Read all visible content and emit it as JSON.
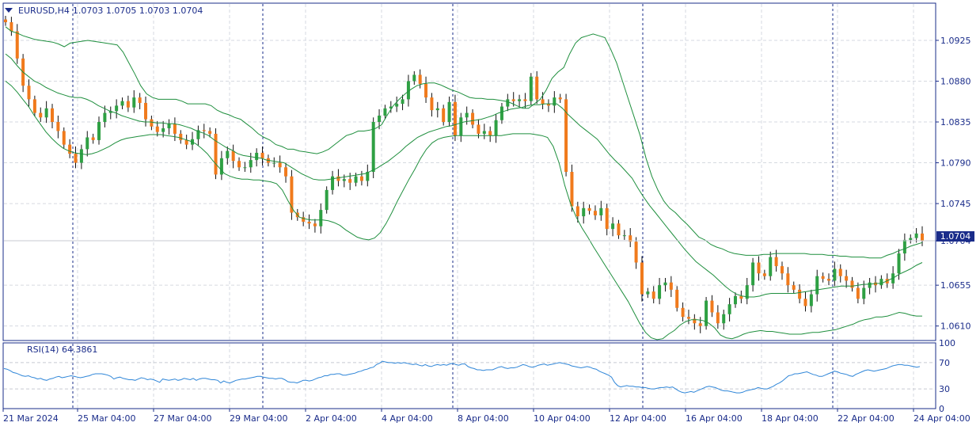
{
  "header": {
    "symbol": "EURUSD,H4",
    "ohlc": "1.0703 1.0705 1.0703 1.0704"
  },
  "rsi": {
    "label": "RSI(14) 64.3861",
    "levels": [
      "100",
      "70",
      "30",
      "0"
    ]
  },
  "price_tag": "1.0704",
  "colors": {
    "bull": "#2ea043",
    "bear": "#f07a1c",
    "band": "#1f8f3e",
    "rsi_line": "#2f86d8",
    "axis_text": "#1a2c8a",
    "grid": "#d6d9e0",
    "separator": "#1a2c8a",
    "price_tag_bg": "#1a2c8a"
  },
  "chart_data": {
    "type": "candlestick",
    "symbol": "EURUSD",
    "timeframe": "H4",
    "y_ticks": [
      "1.0925",
      "1.0880",
      "1.0835",
      "1.0790",
      "1.0745",
      "1.0704",
      "1.0655",
      "1.0610"
    ],
    "ylim": [
      1.0594,
      1.0966
    ],
    "x_labels": [
      "21 Mar 2024",
      "25 Mar 04:00",
      "27 Mar 04:00",
      "29 Mar 04:00",
      "2 Apr 04:00",
      "4 Apr 04:00",
      "8 Apr 04:00",
      "10 Apr 04:00",
      "12 Apr 04:00",
      "16 Apr 04:00",
      "18 Apr 04:00",
      "22 Apr 04:00",
      "24 Apr 04:00"
    ],
    "last_price": 1.0704,
    "closes": [
      1.0945,
      1.0935,
      1.0905,
      1.0875,
      1.086,
      1.0845,
      1.084,
      1.085,
      1.0835,
      1.0825,
      1.081,
      1.08,
      1.079,
      1.0805,
      1.0818,
      1.0815,
      1.0835,
      1.0845,
      1.0847,
      1.0853,
      1.0858,
      1.0851,
      1.0862,
      1.0856,
      1.0838,
      1.083,
      1.0824,
      1.0828,
      1.0833,
      1.0822,
      1.0815,
      1.081,
      1.0816,
      1.0826,
      1.0825,
      1.0822,
      1.0777,
      1.0795,
      1.0803,
      1.0792,
      1.0785,
      1.0785,
      1.0793,
      1.0801,
      1.0795,
      1.079,
      1.079,
      1.0785,
      1.0775,
      1.0735,
      1.073,
      1.0725,
      1.0723,
      1.072,
      1.0738,
      1.076,
      1.0775,
      1.077,
      1.0772,
      1.0768,
      1.0775,
      1.077,
      1.078,
      1.0835,
      1.0842,
      1.085,
      1.0852,
      1.0855,
      1.086,
      1.088,
      1.0887,
      1.0877,
      1.0862,
      1.0848,
      1.085,
      1.0835,
      1.0857,
      1.082,
      1.084,
      1.0845,
      1.0832,
      1.0822,
      1.0825,
      1.082,
      1.0837,
      1.0852,
      1.086,
      1.0858,
      1.086,
      1.0858,
      1.0885,
      1.086,
      1.0855,
      1.0853,
      1.0862,
      1.086,
      1.078,
      1.0742,
      1.0731,
      1.074,
      1.0737,
      1.0732,
      1.074,
      1.0717,
      1.0723,
      1.071,
      1.071,
      1.0703,
      1.068,
      1.0645,
      1.0648,
      1.064,
      1.0655,
      1.0658,
      1.065,
      1.063,
      1.062,
      1.0618,
      1.0613,
      1.061,
      1.0638,
      1.0625,
      1.0613,
      1.0623,
      1.0634,
      1.0643,
      1.064,
      1.0655,
      1.068,
      1.0668,
      1.0665,
      1.0686,
      1.0676,
      1.0668,
      1.0655,
      1.065,
      1.064,
      1.0632,
      1.0645,
      1.0665,
      1.0662,
      1.066,
      1.0673,
      1.0665,
      1.066,
      1.0652,
      1.064,
      1.0652,
      1.0658,
      1.0655,
      1.0662,
      1.0657,
      1.0668,
      1.069,
      1.0705,
      1.0707,
      1.0712,
      1.0704
    ],
    "band_upper": [
      1.094,
      1.0935,
      1.0933,
      1.093,
      1.0928,
      1.0926,
      1.0925,
      1.0924,
      1.0923,
      1.0921,
      1.0918,
      1.0922,
      1.0923,
      1.0924,
      1.0925,
      1.0924,
      1.0923,
      1.0922,
      1.0921,
      1.092,
      1.0912,
      1.09,
      1.0888,
      1.0875,
      1.0866,
      1.0862,
      1.086,
      1.086,
      1.086,
      1.086,
      1.0858,
      1.0855,
      1.0855,
      1.0855,
      1.0855,
      1.0853,
      1.0848,
      1.0845,
      1.0843,
      1.084,
      1.0838,
      1.0833,
      1.0828,
      1.0822,
      1.0818,
      1.0815,
      1.081,
      1.0808,
      1.0805,
      1.0805,
      1.0803,
      1.0802,
      1.0801,
      1.08,
      1.0802,
      1.0805,
      1.081,
      1.0815,
      1.082,
      1.0822,
      1.0825,
      1.0825,
      1.0826,
      1.0828,
      1.0832,
      1.0843,
      1.0853,
      1.086,
      1.0866,
      1.0871,
      1.0875,
      1.0877,
      1.0878,
      1.0878,
      1.0876,
      1.0873,
      1.087,
      1.0868,
      1.0865,
      1.0862,
      1.0861,
      1.0861,
      1.086,
      1.086,
      1.0859,
      1.0858,
      1.0856,
      1.0853,
      1.085,
      1.085,
      1.0855,
      1.086,
      1.087,
      1.0883,
      1.089,
      1.0895,
      1.091,
      1.0922,
      1.0928,
      1.093,
      1.0932,
      1.093,
      1.0928,
      1.0915,
      1.09,
      1.088,
      1.086,
      1.084,
      1.082,
      1.0795,
      1.0775,
      1.076,
      1.0748,
      1.074,
      1.0735,
      1.0728,
      1.0722,
      1.0715,
      1.0708,
      1.0705,
      1.07,
      1.0697,
      1.0695,
      1.0692,
      1.069,
      1.0689,
      1.0688,
      1.0688,
      1.0688,
      1.0689,
      1.0689,
      1.069,
      1.069,
      1.069,
      1.069,
      1.069,
      1.069,
      1.0689,
      1.0689,
      1.0689,
      1.0688,
      1.0688,
      1.0687,
      1.0687,
      1.0686,
      1.0686,
      1.0686,
      1.0685,
      1.0685,
      1.0685,
      1.0688,
      1.069,
      1.0693,
      1.0695,
      1.0698,
      1.07,
      1.0702
    ],
    "band_middle": [
      1.091,
      1.0905,
      1.0897,
      1.089,
      1.0885,
      1.088,
      1.0877,
      1.0873,
      1.087,
      1.0867,
      1.0865,
      1.0863,
      1.0862,
      1.0862,
      1.086,
      1.0857,
      1.0853,
      1.085,
      1.0847,
      1.0845,
      1.0842,
      1.084,
      1.0838,
      1.0836,
      1.0835,
      1.0835,
      1.0834,
      1.0834,
      1.0833,
      1.0833,
      1.0832,
      1.083,
      1.0828,
      1.0825,
      1.0823,
      1.082,
      1.0815,
      1.0811,
      1.0807,
      1.0804,
      1.08,
      1.0798,
      1.0797,
      1.0796,
      1.0795,
      1.0793,
      1.0792,
      1.0791,
      1.079,
      1.0786,
      1.0782,
      1.0778,
      1.0775,
      1.0772,
      1.0771,
      1.0771,
      1.0772,
      1.0773,
      1.0774,
      1.0775,
      1.0776,
      1.0777,
      1.0778,
      1.0781,
      1.0784,
      1.0788,
      1.0792,
      1.0797,
      1.0802,
      1.0808,
      1.0813,
      1.0818,
      1.0821,
      1.0824,
      1.0826,
      1.0828,
      1.083,
      1.0831,
      1.0833,
      1.0835,
      1.0836,
      1.0837,
      1.0838,
      1.084,
      1.0842,
      1.0845,
      1.0847,
      1.0849,
      1.085,
      1.0851,
      1.0853,
      1.0854,
      1.0854,
      1.0855,
      1.0855,
      1.0855,
      1.085,
      1.0843,
      1.0837,
      1.0831,
      1.0826,
      1.0821,
      1.0816,
      1.0808,
      1.08,
      1.0793,
      1.0787,
      1.078,
      1.0773,
      1.0762,
      1.0752,
      1.0743,
      1.0735,
      1.0727,
      1.0719,
      1.0711,
      1.0703,
      1.0695,
      1.0688,
      1.0681,
      1.0676,
      1.0671,
      1.0666,
      1.066,
      1.0654,
      1.0649,
      1.0645,
      1.0643,
      1.0642,
      1.0642,
      1.0643,
      1.0645,
      1.0646,
      1.0646,
      1.0646,
      1.0646,
      1.0646,
      1.0647,
      1.0648,
      1.0649,
      1.065,
      1.0651,
      1.0652,
      1.0653,
      1.0654,
      1.0654,
      1.0654,
      1.0655,
      1.0656,
      1.0656,
      1.0657,
      1.0657,
      1.066,
      1.0663,
      1.0667,
      1.067,
      1.0673,
      1.0677,
      1.068
    ],
    "band_lower": [
      1.088,
      1.0875,
      1.0868,
      1.086,
      1.0852,
      1.0842,
      1.0833,
      1.0824,
      1.0817,
      1.0811,
      1.0806,
      1.0803,
      1.0801,
      1.08,
      1.0799,
      1.08,
      1.0802,
      1.0805,
      1.0808,
      1.0812,
      1.0815,
      1.0817,
      1.0818,
      1.0819,
      1.082,
      1.0821,
      1.0821,
      1.0821,
      1.082,
      1.0819,
      1.0818,
      1.0816,
      1.0814,
      1.0811,
      1.0806,
      1.08,
      1.0792,
      1.0785,
      1.0778,
      1.0775,
      1.0773,
      1.0772,
      1.0772,
      1.0771,
      1.0771,
      1.077,
      1.0769,
      1.0767,
      1.076,
      1.0748,
      1.0737,
      1.073,
      1.0728,
      1.0727,
      1.0727,
      1.0727,
      1.0726,
      1.0724,
      1.0721,
      1.0716,
      1.0712,
      1.0708,
      1.0706,
      1.0705,
      1.0707,
      1.0713,
      1.0723,
      1.0735,
      1.0748,
      1.076,
      1.0772,
      1.0783,
      1.0795,
      1.0805,
      1.0812,
      1.0816,
      1.0818,
      1.0819,
      1.082,
      1.082,
      1.082,
      1.082,
      1.082,
      1.082,
      1.082,
      1.082,
      1.082,
      1.0821,
      1.0822,
      1.0822,
      1.0822,
      1.0822,
      1.0821,
      1.082,
      1.0818,
      1.0808,
      1.079,
      1.0765,
      1.0745,
      1.073,
      1.0718,
      1.0708,
      1.0697,
      1.0687,
      1.0677,
      1.0667,
      1.0657,
      1.0647,
      1.0637,
      1.0625,
      1.0613,
      1.0603,
      1.0597,
      1.0595,
      1.0596,
      1.0601,
      1.0605,
      1.0611,
      1.0615,
      1.0617,
      1.0617,
      1.0616,
      1.0613,
      1.0608,
      1.06,
      1.0597,
      1.0596,
      1.0598,
      1.0601,
      1.0603,
      1.0604,
      1.0605,
      1.0604,
      1.0604,
      1.0603,
      1.0602,
      1.0601,
      1.0601,
      1.0601,
      1.0602,
      1.0603,
      1.0603,
      1.0604,
      1.0605,
      1.0606,
      1.0608,
      1.061,
      1.0612,
      1.0615,
      1.0617,
      1.0618,
      1.062,
      1.062,
      1.0621,
      1.0623,
      1.0625,
      1.0624,
      1.0622,
      1.0621,
      1.0621
    ],
    "rsi_values": [
      61,
      60,
      58,
      55,
      54,
      52,
      50,
      49,
      50,
      48,
      47,
      45,
      46,
      44,
      43,
      45,
      46,
      48,
      49,
      47,
      48,
      49,
      50,
      49,
      48,
      47,
      48,
      49,
      50,
      52,
      53,
      53,
      53,
      52,
      51,
      49,
      45,
      47,
      48,
      46,
      45,
      44,
      44,
      43,
      45,
      47,
      46,
      44,
      45,
      44,
      42,
      40,
      45,
      44,
      43,
      44,
      45,
      43,
      44,
      46,
      45,
      44,
      46,
      43,
      45,
      46,
      46,
      45,
      44,
      44,
      43,
      39,
      42,
      40,
      39,
      41,
      43,
      44,
      45,
      45,
      46,
      47,
      48,
      49,
      49,
      48,
      47,
      46,
      46,
      45,
      46,
      46,
      44,
      41,
      40,
      40,
      39,
      41,
      43,
      43,
      42,
      43,
      45,
      47,
      48,
      50,
      50,
      52,
      52,
      53,
      53,
      51,
      51,
      52,
      53,
      54,
      56,
      57,
      59,
      60,
      62,
      63,
      67,
      69,
      72,
      71,
      70,
      70,
      69,
      70,
      69,
      70,
      69,
      68,
      67,
      68,
      66,
      65,
      67,
      65,
      64,
      66,
      67,
      66,
      67,
      66,
      68,
      69,
      67,
      66,
      68,
      68,
      64,
      62,
      61,
      59,
      59,
      58,
      59,
      59,
      59,
      61,
      63,
      64,
      62,
      61,
      62,
      62,
      63,
      65,
      67,
      66,
      64,
      63,
      64,
      66,
      67,
      68,
      66,
      67,
      68,
      69,
      70,
      69,
      68,
      67,
      65,
      64,
      63,
      62,
      63,
      64,
      63,
      61,
      60,
      57,
      55,
      53,
      51,
      48,
      40,
      35,
      33,
      34,
      35,
      34,
      34,
      33,
      33,
      32,
      32,
      31,
      30,
      30,
      31,
      32,
      32,
      33,
      32,
      33,
      30,
      27,
      25,
      24,
      25,
      26,
      25,
      27,
      29,
      31,
      33,
      34,
      33,
      32,
      30,
      28,
      27,
      27,
      26,
      25,
      24,
      24,
      25,
      27,
      28,
      29,
      30,
      32,
      31,
      30,
      30,
      32,
      34,
      37,
      39,
      42,
      46,
      50,
      51,
      53,
      53,
      54,
      55,
      56,
      54,
      52,
      51,
      49,
      49,
      51,
      53,
      55,
      57,
      56,
      54,
      53,
      52,
      50,
      49,
      52,
      54,
      56,
      58,
      59,
      58,
      57,
      58,
      59,
      60,
      61,
      63,
      65,
      66,
      67,
      67,
      66,
      66,
      65,
      64,
      63,
      64
    ]
  }
}
